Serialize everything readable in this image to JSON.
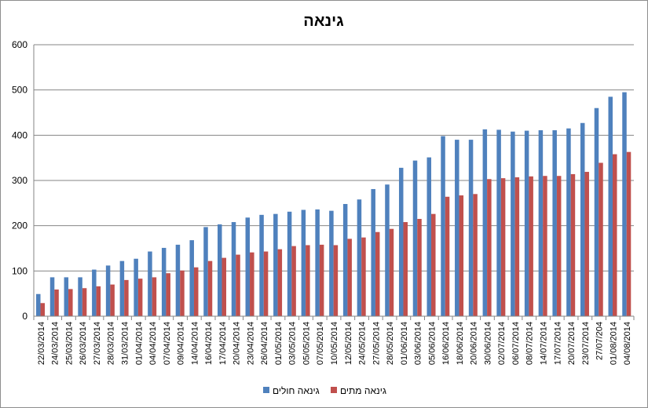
{
  "chart_data": {
    "type": "bar",
    "title": "גינאה",
    "xlabel": "",
    "ylabel": "",
    "ylim": [
      0,
      600
    ],
    "yticks": [
      0,
      100,
      200,
      300,
      400,
      500,
      600
    ],
    "grid": true,
    "legend_position": "bottom",
    "categories": [
      "22/03/2014",
      "24/03/2014",
      "25/03/2014",
      "26/03/2014",
      "27/03/2014",
      "28/03/2014",
      "31/03/2014",
      "01/04/2014",
      "04/04/2014",
      "07/04/2014",
      "09/04/2014",
      "14/04/2014",
      "16/04/2014",
      "17/04/2014",
      "20/04/2014",
      "23/04/2014",
      "26/04/2014",
      "01/05/2014",
      "03/05/2014",
      "05/05/2014",
      "07/05/2014",
      "10/05/2014",
      "12/05/2014",
      "24/05/2014",
      "27/05/2014",
      "28/05/2014",
      "01/06/2014",
      "03/06/2014",
      "05/06/2014",
      "16/06/2014",
      "18/06/2014",
      "20/06/2014",
      "30/06/2014",
      "02/07/2014",
      "06/07/2014",
      "08/07/2014",
      "14/07/2014",
      "17/07/2014",
      "20/07/2014",
      "23/07/2014",
      "27/07/204",
      "01/08/2014",
      "04/08/2014"
    ],
    "series": [
      {
        "name": "גינאה חולים",
        "color": "#4f81bd",
        "values": [
          49,
          86,
          86,
          86,
          103,
          112,
          122,
          127,
          143,
          151,
          158,
          168,
          197,
          203,
          208,
          218,
          224,
          226,
          231,
          235,
          236,
          233,
          248,
          258,
          281,
          291,
          328,
          344,
          351,
          398,
          390,
          390,
          413,
          412,
          408,
          410,
          411,
          411,
          415,
          427,
          460,
          485,
          495
        ]
      },
      {
        "name": "גינאה מתים",
        "color": "#c0504d",
        "values": [
          29,
          59,
          60,
          62,
          66,
          70,
          80,
          83,
          86,
          95,
          101,
          108,
          122,
          129,
          136,
          141,
          143,
          148,
          155,
          157,
          158,
          157,
          171,
          174,
          186,
          193,
          208,
          215,
          226,
          264,
          267,
          270,
          303,
          305,
          307,
          309,
          310,
          310,
          314,
          319,
          339,
          358,
          363
        ]
      }
    ]
  }
}
